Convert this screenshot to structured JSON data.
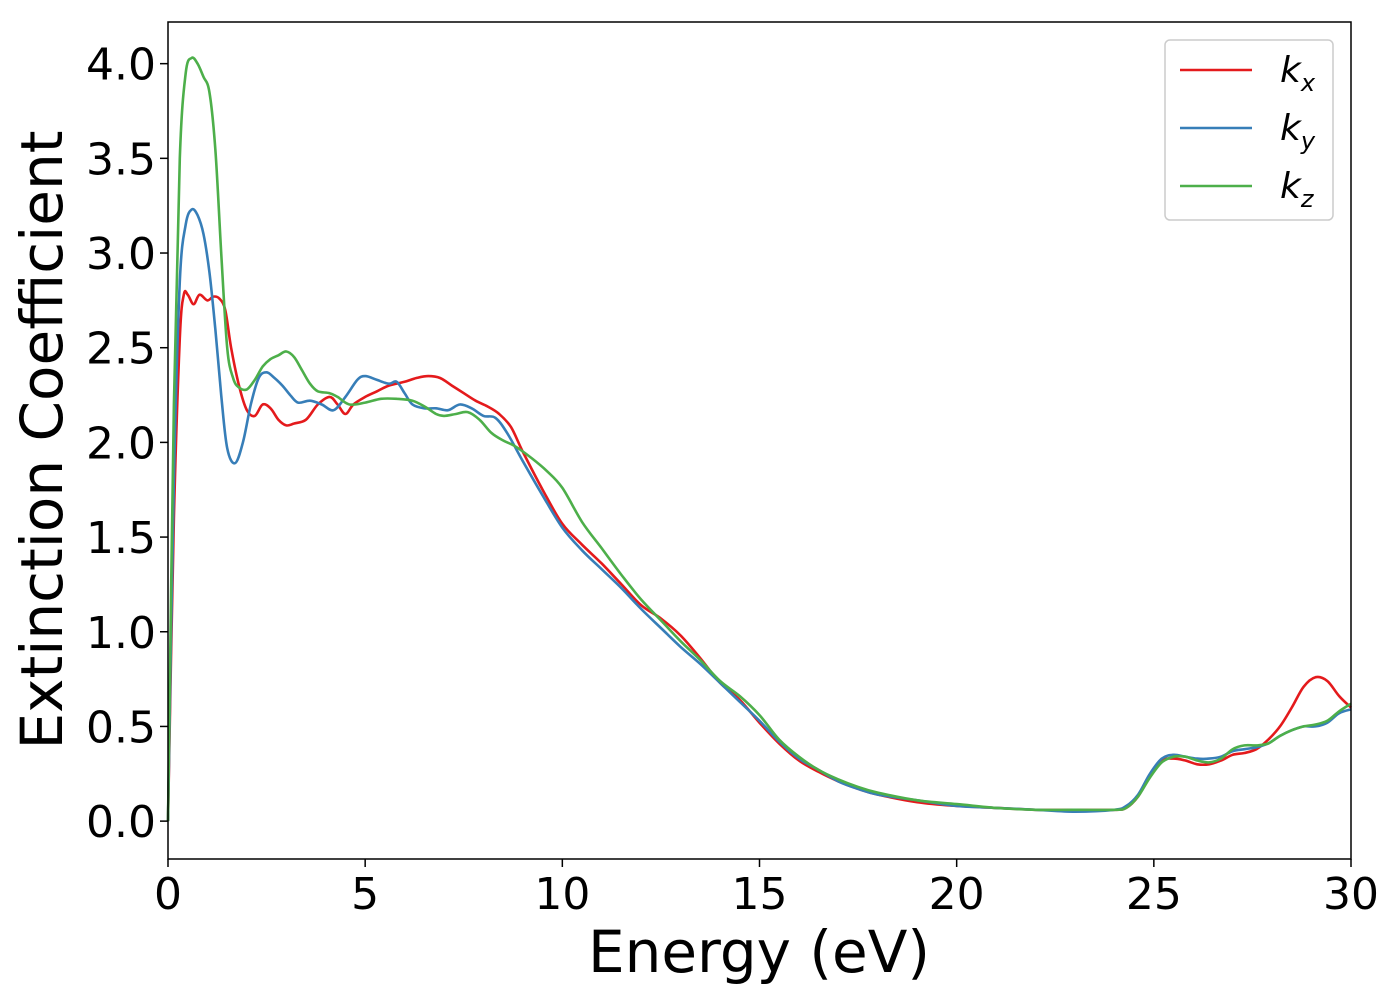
{
  "chart_data": {
    "type": "line",
    "title": "",
    "xlabel": "Energy (eV)",
    "ylabel": "Extinction Coefficient",
    "xlim": [
      0,
      30
    ],
    "ylim": [
      -0.2,
      4.22
    ],
    "xticks": [
      {
        "value": 0,
        "label": "0"
      },
      {
        "value": 5,
        "label": "5"
      },
      {
        "value": 10,
        "label": "10"
      },
      {
        "value": 15,
        "label": "15"
      },
      {
        "value": 20,
        "label": "20"
      },
      {
        "value": 25,
        "label": "25"
      },
      {
        "value": 30,
        "label": "30"
      }
    ],
    "yticks": [
      {
        "value": 0.0,
        "label": "0.0"
      },
      {
        "value": 0.5,
        "label": "0.5"
      },
      {
        "value": 1.0,
        "label": "1.0"
      },
      {
        "value": 1.5,
        "label": "1.5"
      },
      {
        "value": 2.0,
        "label": "2.0"
      },
      {
        "value": 2.5,
        "label": "2.5"
      },
      {
        "value": 3.0,
        "label": "3.0"
      },
      {
        "value": 3.5,
        "label": "3.5"
      },
      {
        "value": 4.0,
        "label": "4.0"
      }
    ],
    "grid": false,
    "legend_position": "top-right",
    "series": [
      {
        "name": "k",
        "subscript": "x",
        "color": "#e41a1c",
        "x": [
          0,
          0.15,
          0.3,
          0.4,
          0.5,
          0.65,
          0.8,
          1.0,
          1.15,
          1.3,
          1.45,
          1.6,
          1.8,
          2.0,
          2.2,
          2.4,
          2.6,
          2.8,
          3.0,
          3.2,
          3.5,
          3.8,
          4.1,
          4.3,
          4.5,
          4.7,
          5.0,
          5.3,
          5.6,
          6.0,
          6.3,
          6.6,
          6.9,
          7.2,
          7.5,
          7.8,
          8.1,
          8.4,
          8.7,
          9.0,
          9.5,
          10.0,
          10.5,
          11.0,
          11.5,
          12.0,
          12.5,
          13.0,
          13.5,
          14.0,
          14.5,
          15.0,
          15.5,
          16.0,
          16.5,
          17.0,
          17.5,
          18.0,
          19.0,
          20.0,
          21.0,
          22.0,
          23.0,
          24.0,
          24.3,
          24.6,
          24.9,
          25.2,
          25.5,
          25.8,
          26.1,
          26.4,
          26.7,
          27.0,
          27.3,
          27.6,
          27.9,
          28.2,
          28.5,
          28.8,
          29.1,
          29.4,
          29.7,
          30.0
        ],
        "values": [
          0.0,
          1.6,
          2.55,
          2.78,
          2.78,
          2.73,
          2.78,
          2.75,
          2.77,
          2.76,
          2.7,
          2.5,
          2.3,
          2.17,
          2.14,
          2.2,
          2.18,
          2.12,
          2.09,
          2.1,
          2.12,
          2.2,
          2.24,
          2.2,
          2.15,
          2.2,
          2.24,
          2.27,
          2.3,
          2.32,
          2.34,
          2.35,
          2.34,
          2.3,
          2.26,
          2.22,
          2.19,
          2.15,
          2.08,
          1.95,
          1.75,
          1.57,
          1.46,
          1.36,
          1.25,
          1.14,
          1.07,
          0.98,
          0.86,
          0.73,
          0.64,
          0.52,
          0.41,
          0.32,
          0.26,
          0.21,
          0.17,
          0.14,
          0.1,
          0.08,
          0.07,
          0.06,
          0.06,
          0.06,
          0.07,
          0.13,
          0.24,
          0.32,
          0.33,
          0.32,
          0.3,
          0.3,
          0.32,
          0.35,
          0.36,
          0.38,
          0.43,
          0.5,
          0.6,
          0.71,
          0.76,
          0.74,
          0.66,
          0.6
        ]
      },
      {
        "name": "k",
        "subscript": "y",
        "color": "#377eb8",
        "x": [
          0,
          0.15,
          0.3,
          0.45,
          0.6,
          0.75,
          0.9,
          1.05,
          1.2,
          1.35,
          1.5,
          1.7,
          1.9,
          2.1,
          2.3,
          2.5,
          2.7,
          2.9,
          3.1,
          3.3,
          3.6,
          3.9,
          4.2,
          4.5,
          4.8,
          5.0,
          5.3,
          5.6,
          5.8,
          6.0,
          6.2,
          6.5,
          6.8,
          7.1,
          7.4,
          7.7,
          8.0,
          8.3,
          8.6,
          9.0,
          9.5,
          10.0,
          10.5,
          11.0,
          11.5,
          12.0,
          12.5,
          13.0,
          13.5,
          14.0,
          14.5,
          15.0,
          15.5,
          16.0,
          16.5,
          17.0,
          17.5,
          18.0,
          19.0,
          20.0,
          21.0,
          22.0,
          23.0,
          24.0,
          24.3,
          24.6,
          24.9,
          25.2,
          25.5,
          25.8,
          26.1,
          26.4,
          26.7,
          27.0,
          27.3,
          27.6,
          27.9,
          28.2,
          28.5,
          28.8,
          29.1,
          29.4,
          29.7,
          30.0
        ],
        "values": [
          0.0,
          1.8,
          2.85,
          3.15,
          3.23,
          3.2,
          3.1,
          2.9,
          2.6,
          2.25,
          1.97,
          1.89,
          2.0,
          2.2,
          2.34,
          2.37,
          2.34,
          2.3,
          2.25,
          2.21,
          2.22,
          2.2,
          2.17,
          2.24,
          2.33,
          2.35,
          2.33,
          2.31,
          2.32,
          2.26,
          2.2,
          2.18,
          2.18,
          2.17,
          2.2,
          2.18,
          2.14,
          2.13,
          2.05,
          1.9,
          1.72,
          1.55,
          1.43,
          1.33,
          1.23,
          1.12,
          1.02,
          0.92,
          0.83,
          0.73,
          0.63,
          0.53,
          0.42,
          0.33,
          0.27,
          0.21,
          0.17,
          0.14,
          0.11,
          0.08,
          0.07,
          0.06,
          0.05,
          0.06,
          0.08,
          0.14,
          0.25,
          0.33,
          0.35,
          0.34,
          0.33,
          0.33,
          0.34,
          0.37,
          0.38,
          0.39,
          0.41,
          0.45,
          0.48,
          0.5,
          0.5,
          0.52,
          0.57,
          0.59
        ]
      },
      {
        "name": "k",
        "subscript": "z",
        "color": "#4daf4a",
        "x": [
          0,
          0.15,
          0.3,
          0.45,
          0.6,
          0.75,
          0.9,
          1.05,
          1.2,
          1.35,
          1.5,
          1.65,
          1.8,
          2.0,
          2.2,
          2.4,
          2.6,
          2.8,
          3.0,
          3.2,
          3.4,
          3.6,
          3.8,
          4.1,
          4.3,
          4.6,
          5.0,
          5.4,
          5.8,
          6.2,
          6.5,
          6.8,
          7.0,
          7.3,
          7.6,
          7.9,
          8.2,
          8.5,
          8.8,
          9.2,
          9.6,
          10.0,
          10.5,
          11.0,
          11.5,
          12.0,
          12.5,
          13.0,
          13.5,
          14.0,
          14.5,
          15.0,
          15.5,
          16.0,
          16.5,
          17.0,
          17.5,
          18.0,
          19.0,
          20.0,
          21.0,
          22.0,
          23.0,
          24.0,
          24.3,
          24.6,
          24.9,
          25.2,
          25.5,
          25.8,
          26.1,
          26.4,
          26.7,
          27.0,
          27.3,
          27.6,
          27.9,
          28.2,
          28.5,
          28.8,
          29.1,
          29.4,
          29.7,
          30.0
        ],
        "values": [
          0.0,
          2.2,
          3.5,
          3.95,
          4.03,
          4.0,
          3.93,
          3.85,
          3.55,
          3.0,
          2.5,
          2.34,
          2.29,
          2.28,
          2.33,
          2.4,
          2.44,
          2.46,
          2.48,
          2.45,
          2.38,
          2.31,
          2.27,
          2.26,
          2.24,
          2.2,
          2.21,
          2.23,
          2.23,
          2.22,
          2.19,
          2.15,
          2.14,
          2.15,
          2.16,
          2.12,
          2.05,
          2.01,
          1.98,
          1.92,
          1.85,
          1.76,
          1.58,
          1.44,
          1.3,
          1.17,
          1.06,
          0.95,
          0.85,
          0.74,
          0.66,
          0.56,
          0.43,
          0.34,
          0.27,
          0.22,
          0.18,
          0.15,
          0.11,
          0.09,
          0.07,
          0.06,
          0.06,
          0.06,
          0.07,
          0.13,
          0.23,
          0.31,
          0.34,
          0.34,
          0.32,
          0.31,
          0.33,
          0.38,
          0.4,
          0.4,
          0.41,
          0.45,
          0.48,
          0.5,
          0.51,
          0.53,
          0.58,
          0.62
        ]
      }
    ]
  }
}
